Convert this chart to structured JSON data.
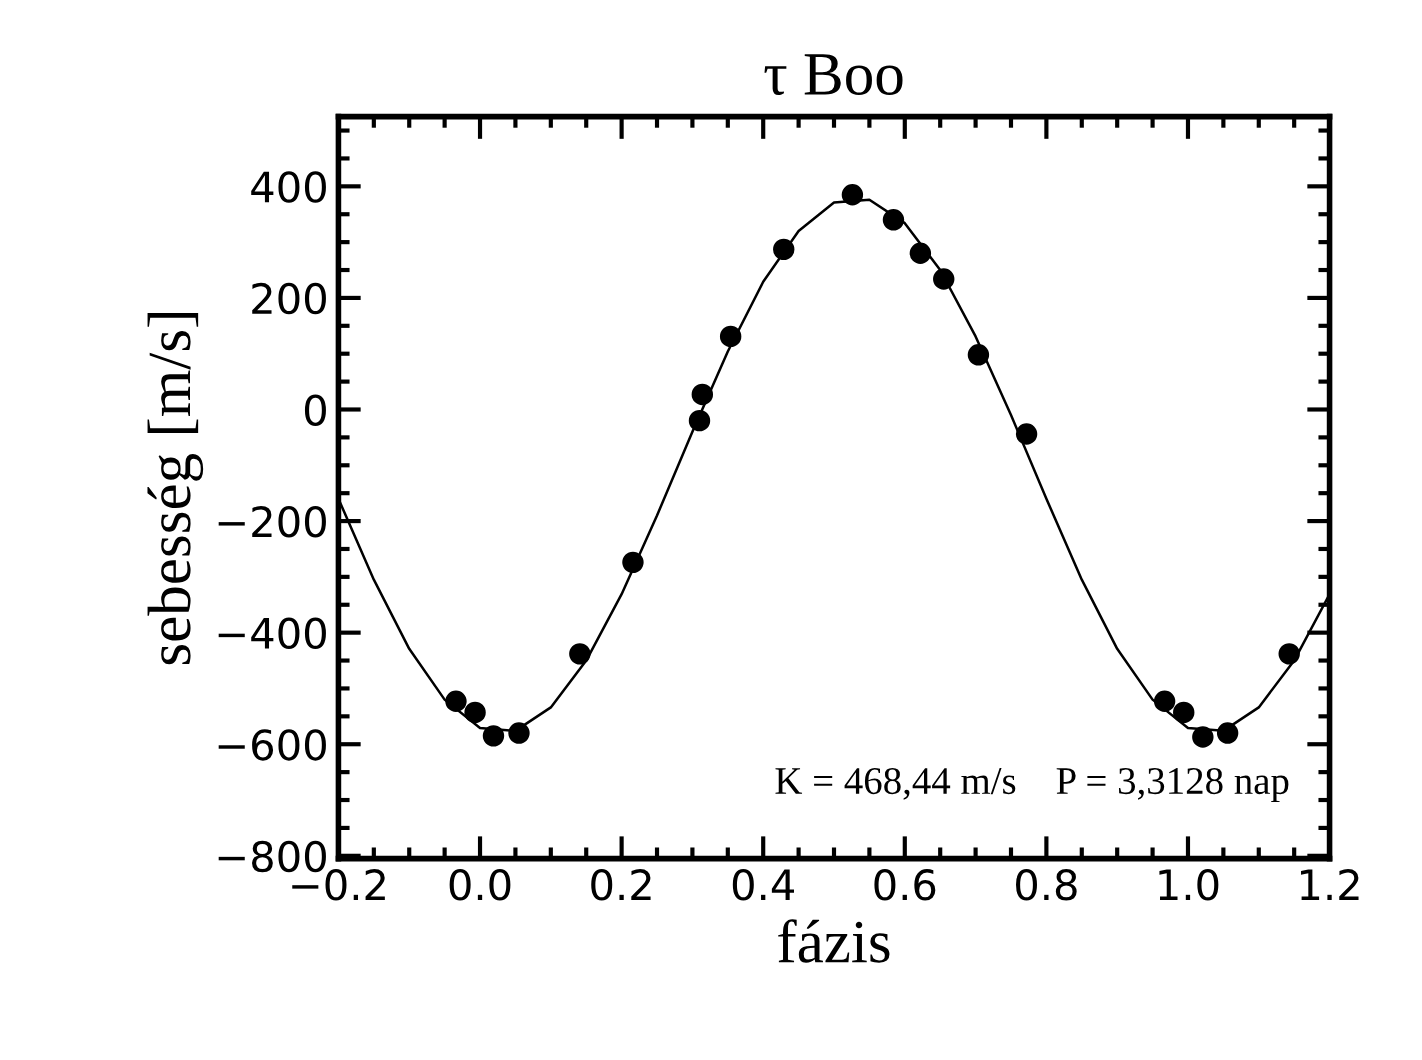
{
  "chart_data": {
    "type": "scatter",
    "title": "τ Boo",
    "xlabel": "fázis",
    "ylabel": "sebesség [m/s]",
    "xlim": [
      -0.2,
      1.2
    ],
    "xticks": [
      {
        "value": -0.2,
        "label": "−0.2"
      },
      {
        "value": 0.0,
        "label": "0.0"
      },
      {
        "value": 0.2,
        "label": "0.2"
      },
      {
        "value": 0.4,
        "label": "0.4"
      },
      {
        "value": 0.6,
        "label": "0.6"
      },
      {
        "value": 0.8,
        "label": "0.8"
      },
      {
        "value": 1.0,
        "label": "1.0"
      },
      {
        "value": 1.2,
        "label": "1.2"
      }
    ],
    "ylim": [
      -805,
      525
    ],
    "yticks": [
      {
        "value": -800,
        "label": "−800"
      },
      {
        "value": -600,
        "label": "−600"
      },
      {
        "value": -400,
        "label": "−400"
      },
      {
        "value": -200,
        "label": "−200"
      },
      0,
      200,
      400
    ],
    "grid": false,
    "series": [
      {
        "marker": "circle",
        "color": "#000000",
        "x": [
          -0.034,
          -0.007,
          0.019,
          0.055,
          0.141,
          0.216,
          0.31,
          0.314,
          0.354,
          0.429,
          0.526,
          0.584,
          0.622,
          0.655,
          0.704,
          0.772,
          0.967,
          0.994,
          1.021,
          1.056,
          1.143
        ],
        "values": [
          -523,
          -543,
          -585,
          -580,
          -438,
          -274,
          -20,
          27,
          131,
          287,
          385,
          340,
          280,
          234,
          98,
          -44,
          -523,
          -543,
          -587,
          -580,
          -438
        ]
      },
      {
        "type": "line",
        "color": "#000000",
        "marker": "none",
        "line_style": "solid",
        "x": [
          -0.2,
          -0.15,
          -0.1,
          -0.05,
          0.0,
          0.05,
          0.1,
          0.15,
          0.2,
          0.25,
          0.3,
          0.35,
          0.4,
          0.45,
          0.5,
          0.55,
          0.6,
          0.65,
          0.7,
          0.75,
          0.8,
          0.85,
          0.9,
          0.95,
          1.0,
          1.05,
          1.1,
          1.15,
          1.2
        ],
        "values": [
          -160,
          -305,
          -429,
          -520,
          -571,
          -576,
          -534,
          -450,
          -331,
          -190,
          -40,
          104,
          229,
          320,
          371,
          376,
          334,
          250,
          131,
          -10,
          -160,
          -305,
          -429,
          -520,
          -571,
          -576,
          -534,
          -450,
          -331
        ]
      }
    ],
    "annotations": [
      {
        "text": "K = 468,44 m/s    P = 3,3128 nap"
      }
    ]
  }
}
